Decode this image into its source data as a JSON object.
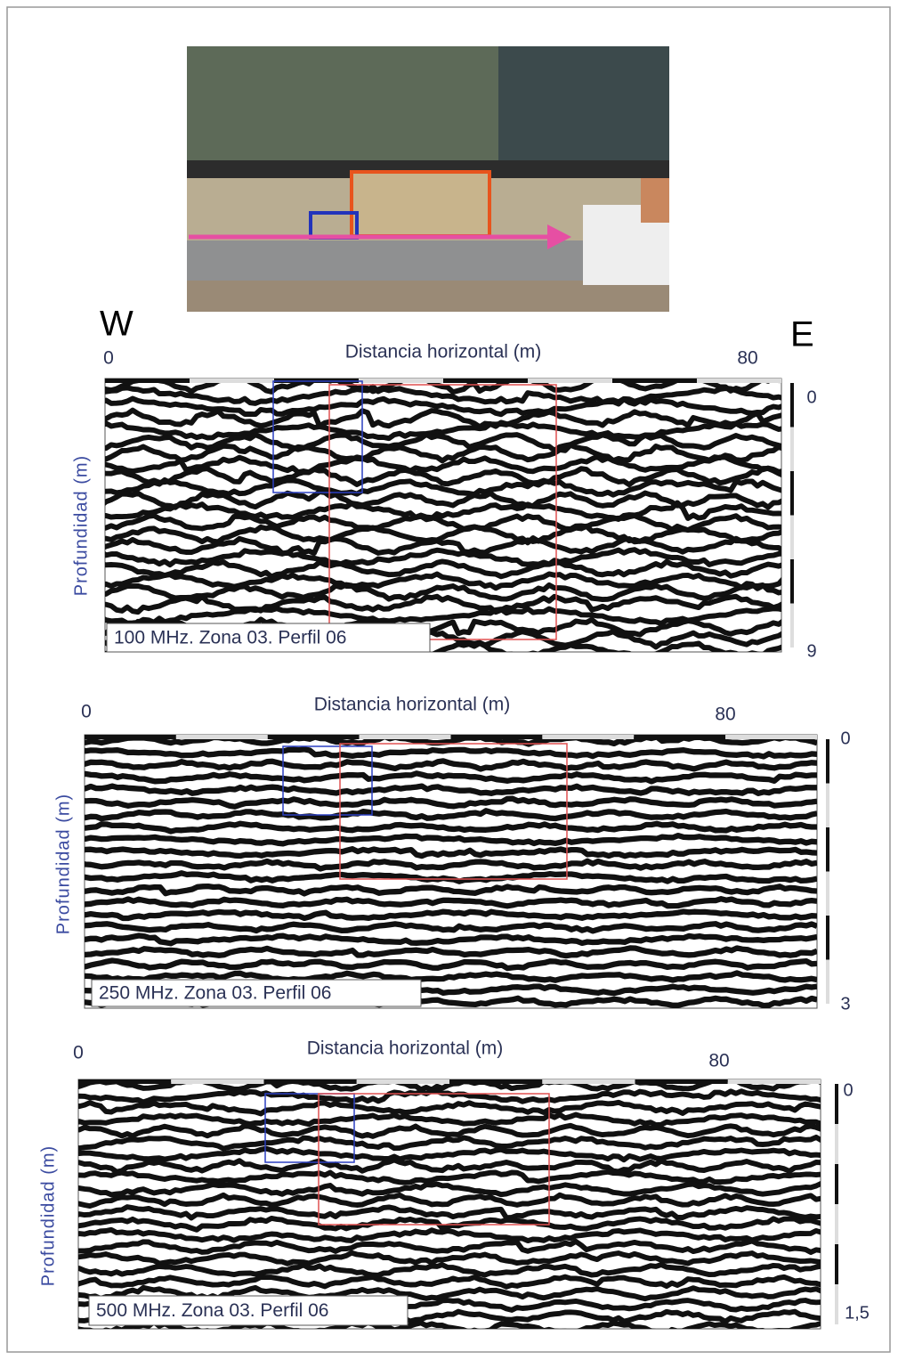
{
  "map": {
    "west": "W",
    "east": "E"
  },
  "panels": [
    {
      "x_label": "Distancia horizontal (m)",
      "x_ticks": [
        "0",
        "80"
      ],
      "y_label": "Profundidad (m)",
      "depth_ticks": [
        "0",
        "9"
      ],
      "caption": "100 MHz. Zona 03. Perfil 06"
    },
    {
      "x_label": "Distancia horizontal (m)",
      "x_ticks": [
        "0",
        "80"
      ],
      "y_label": "Profundidad (m)",
      "depth_ticks": [
        "0",
        "3"
      ],
      "caption": "250 MHz. Zona 03. Perfil 06"
    },
    {
      "x_label": "Distancia horizontal (m)",
      "x_ticks": [
        "0",
        "80"
      ],
      "y_label": "Profundidad (m)",
      "depth_ticks": [
        "0",
        "1,5"
      ],
      "caption": "500 MHz. Zona 03. Perfil 06"
    }
  ]
}
